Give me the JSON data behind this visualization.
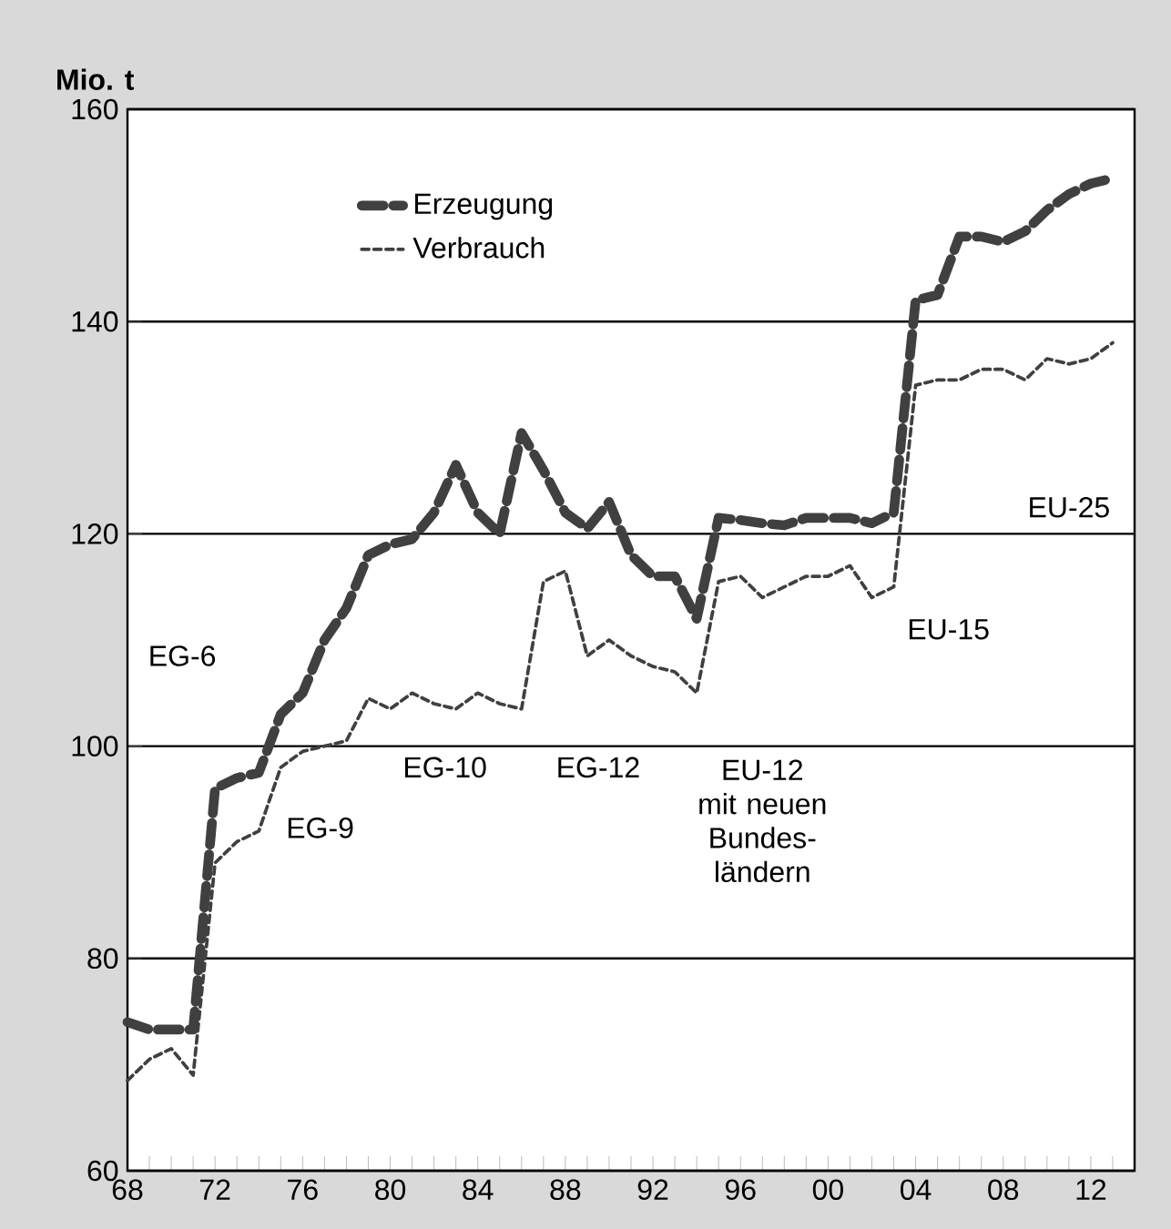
{
  "chart_data": {
    "type": "line",
    "ylabel": "Mio. t",
    "x": [
      1968,
      1969,
      1970,
      1971,
      1972,
      1973,
      1974,
      1975,
      1976,
      1977,
      1978,
      1979,
      1980,
      1981,
      1982,
      1983,
      1984,
      1985,
      1986,
      1987,
      1988,
      1989,
      1990,
      1991,
      1992,
      1993,
      1994,
      1995,
      1996,
      1997,
      1998,
      1999,
      2000,
      2001,
      2002,
      2003,
      2004,
      2005,
      2006,
      2007,
      2008,
      2009,
      2010,
      2011,
      2012,
      2013
    ],
    "series": [
      {
        "name": "Erzeugung",
        "color": "#404040",
        "line_style": "dashed",
        "values": [
          74,
          73.3,
          73.3,
          73.3,
          96,
          97,
          97.5,
          103,
          105,
          110,
          113,
          118,
          119,
          119.5,
          122,
          126.5,
          122,
          120,
          129.5,
          126,
          122,
          120.5,
          123,
          118,
          116,
          116,
          112,
          121.5,
          121.3,
          121,
          120.8,
          121.5,
          121.5,
          121.5,
          121,
          122,
          142,
          142.5,
          148,
          148,
          147.5,
          148.5,
          150.5,
          152,
          153,
          153.5
        ]
      },
      {
        "name": "Verbrauch",
        "color": "#404040",
        "line_style": "dashed",
        "values": [
          68.5,
          70.5,
          71.5,
          69,
          89,
          91,
          92,
          98,
          99.5,
          100,
          100.5,
          104.5,
          103.5,
          105,
          104,
          103.5,
          105,
          104,
          103.5,
          115.5,
          116.5,
          108.5,
          110,
          108.5,
          107.5,
          107,
          105,
          115.5,
          116,
          114,
          115,
          116,
          116,
          117,
          114,
          115,
          134,
          134.5,
          134.5,
          135.5,
          135.5,
          134.5,
          136.5,
          136,
          136.5,
          138
        ]
      }
    ],
    "xlim": [
      1968,
      2014
    ],
    "ylim": [
      60,
      160
    ],
    "xticks": [
      {
        "value": 1968,
        "label": "68"
      },
      {
        "value": 1969,
        "label": null
      },
      {
        "value": 1970,
        "label": null
      },
      {
        "value": 1971,
        "label": null
      },
      {
        "value": 1972,
        "label": "72"
      },
      {
        "value": 1973,
        "label": null
      },
      {
        "value": 1974,
        "label": null
      },
      {
        "value": 1975,
        "label": null
      },
      {
        "value": 1976,
        "label": "76"
      },
      {
        "value": 1977,
        "label": null
      },
      {
        "value": 1978,
        "label": null
      },
      {
        "value": 1979,
        "label": null
      },
      {
        "value": 1980,
        "label": "80"
      },
      {
        "value": 1981,
        "label": null
      },
      {
        "value": 1982,
        "label": null
      },
      {
        "value": 1983,
        "label": null
      },
      {
        "value": 1984,
        "label": "84"
      },
      {
        "value": 1985,
        "label": null
      },
      {
        "value": 1986,
        "label": null
      },
      {
        "value": 1987,
        "label": null
      },
      {
        "value": 1988,
        "label": "88"
      },
      {
        "value": 1989,
        "label": null
      },
      {
        "value": 1990,
        "label": null
      },
      {
        "value": 1991,
        "label": null
      },
      {
        "value": 1992,
        "label": "92"
      },
      {
        "value": 1993,
        "label": null
      },
      {
        "value": 1994,
        "label": null
      },
      {
        "value": 1995,
        "label": null
      },
      {
        "value": 1996,
        "label": "96"
      },
      {
        "value": 1997,
        "label": null
      },
      {
        "value": 1998,
        "label": null
      },
      {
        "value": 1999,
        "label": null
      },
      {
        "value": 2000,
        "label": "00"
      },
      {
        "value": 2001,
        "label": null
      },
      {
        "value": 2002,
        "label": null
      },
      {
        "value": 2003,
        "label": null
      },
      {
        "value": 2004,
        "label": "04"
      },
      {
        "value": 2005,
        "label": null
      },
      {
        "value": 2006,
        "label": null
      },
      {
        "value": 2007,
        "label": null
      },
      {
        "value": 2008,
        "label": "08"
      },
      {
        "value": 2009,
        "label": null
      },
      {
        "value": 2010,
        "label": null
      },
      {
        "value": 2011,
        "label": null
      },
      {
        "value": 2012,
        "label": "12"
      },
      {
        "value": 2013,
        "label": null
      },
      {
        "value": 2014,
        "label": null
      }
    ],
    "yticks": [
      60,
      80,
      100,
      120,
      140,
      160
    ],
    "grid": "y",
    "legend": "top left",
    "marker": "none",
    "annotations": [
      "EG-6",
      "EG-9",
      "EG-10",
      "EG-12",
      "EU-12 mit neuen Bundes-ländern",
      "EU-15",
      "EU-25"
    ]
  }
}
